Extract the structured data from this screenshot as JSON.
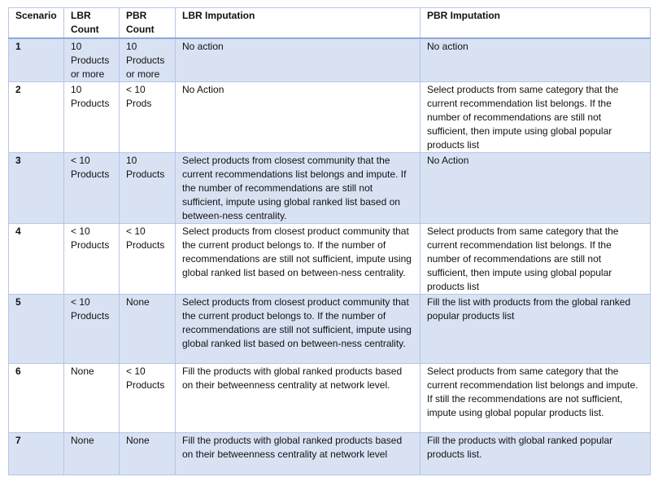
{
  "headers": {
    "scenario": "Scenario",
    "lbr_count": "LBR Count",
    "pbr_count": "PBR Count",
    "lbr_imputation": "LBR Imputation",
    "pbr_imputation": "PBR Imputation"
  },
  "rows": [
    {
      "scenario": "1",
      "lbr_count": "10 Products or more",
      "pbr_count": "10 Products or more",
      "lbr_imputation": "No action",
      "pbr_imputation": "No action"
    },
    {
      "scenario": "2",
      "lbr_count": "10 Products",
      "pbr_count": "< 10 Prods",
      "lbr_imputation": "No Action",
      "pbr_imputation": "Select products from same category that the current recommendation list belongs. If the number of recommendations are still not sufficient, then impute using global popular products list"
    },
    {
      "scenario": "3",
      "lbr_count": "< 10 Products",
      "pbr_count": "10 Products",
      "lbr_imputation": "Select products from closest community that the current recommendations list belongs and impute. If the number of recommendations are still not sufficient, impute using global ranked list based on between-ness centrality.",
      "pbr_imputation": "No Action"
    },
    {
      "scenario": "4",
      "lbr_count": "< 10 Products",
      "pbr_count": "< 10 Products",
      "lbr_imputation": "Select products from closest product community that the current product belongs to. If the number of recommendations are still not sufficient, impute using global ranked list based on between-ness centrality.",
      "pbr_imputation": "Select products from same category that the current recommendation list belongs. If the number of recommendations are still not sufficient, then impute using global popular products list"
    },
    {
      "scenario": "5",
      "lbr_count": "< 10 Products",
      "pbr_count": "None",
      "lbr_imputation": "Select products from closest product community that the current product belongs to. If the number of recommendations are still not sufficient, impute using global ranked list based on between-ness centrality.",
      "pbr_imputation": "Fill the list with products from the global ranked popular products list"
    },
    {
      "scenario": "6",
      "lbr_count": "None",
      "pbr_count": "< 10 Products",
      "lbr_imputation": "Fill the products with global ranked products based on their betweenness centrality at network level.",
      "pbr_imputation": "Select products from same category that the current recommendation list belongs and impute. If still the recommendations are not sufficient, impute using global popular products list."
    },
    {
      "scenario": "7",
      "lbr_count": "None",
      "pbr_count": "None",
      "lbr_imputation": "Fill the products with global ranked products based on their betweenness centrality at network level",
      "pbr_imputation": "Fill the products with global ranked popular products list."
    }
  ]
}
